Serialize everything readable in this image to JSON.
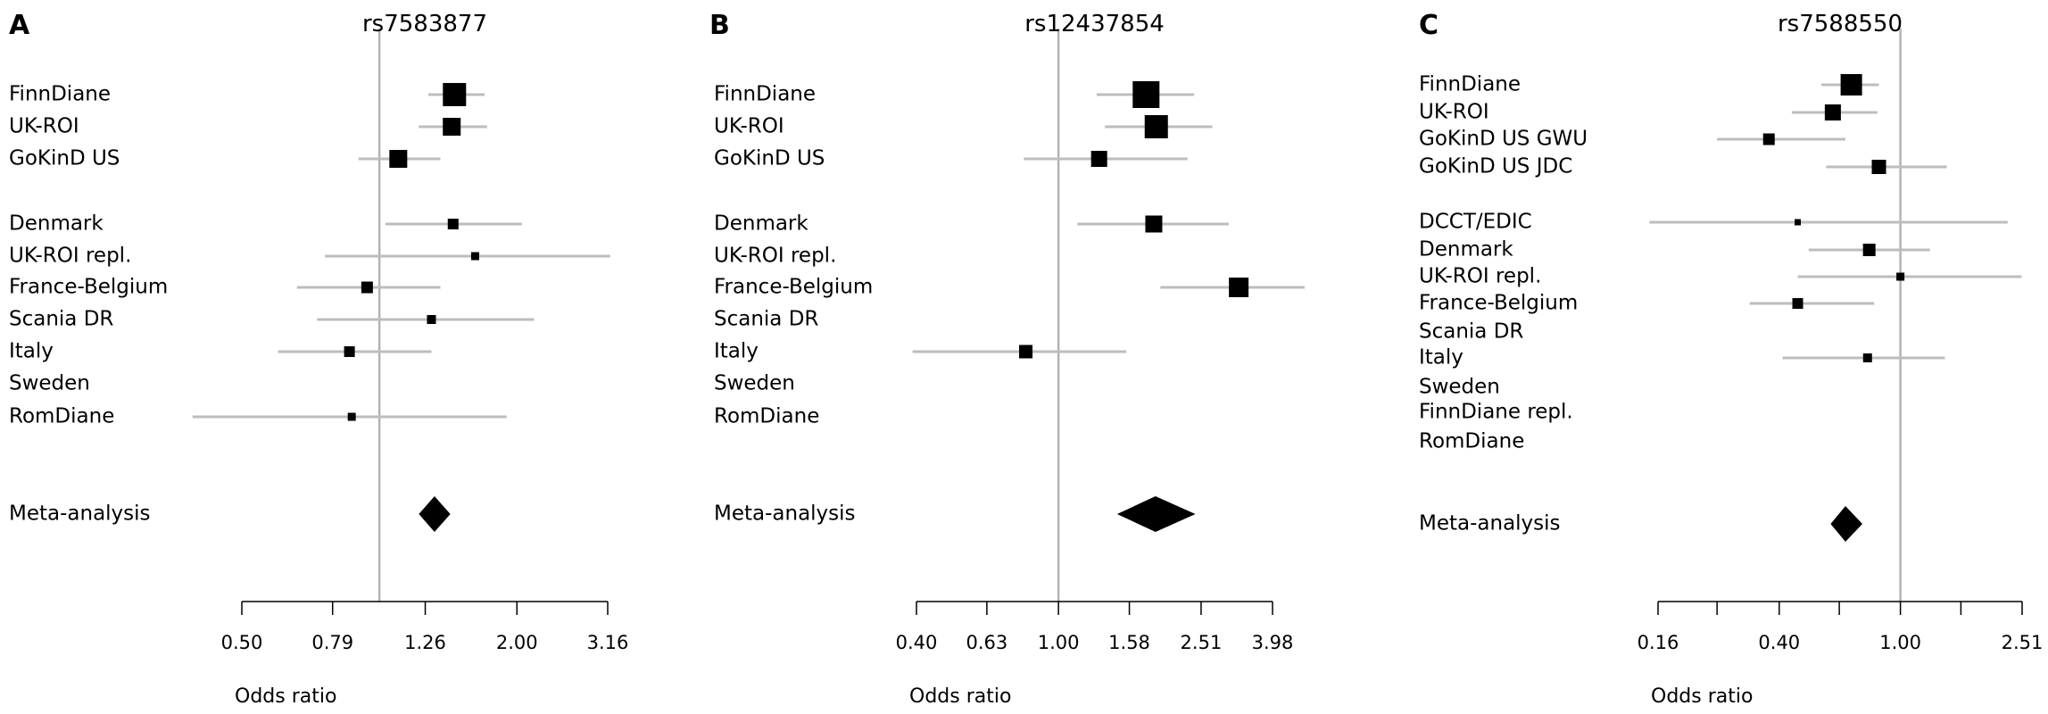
{
  "chart_data": [
    {
      "type": "forest",
      "panel_letter": "A",
      "title": "rs7583877",
      "xlabel": "Odds ratio",
      "log_scale": true,
      "xlim": [
        0.5,
        3.16
      ],
      "ticks": [
        "0.50",
        "0.79",
        "1.26",
        "2.00",
        "3.16"
      ],
      "reference_line": 1.0,
      "rows": [
        {
          "label": "FinnDiane",
          "or": 1.46,
          "lo": 1.28,
          "hi": 1.7
        },
        {
          "label": "UK-ROI",
          "or": 1.44,
          "lo": 1.22,
          "hi": 1.72
        },
        {
          "label": "GoKinD US",
          "or": 1.1,
          "lo": 0.9,
          "hi": 1.36
        },
        {
          "label": "Denmark",
          "or": 1.45,
          "lo": 1.03,
          "hi": 2.05
        },
        {
          "label": "UK-ROI repl.",
          "or": 1.62,
          "lo": 0.76,
          "hi": 3.2
        },
        {
          "label": "France-Belgium",
          "or": 0.94,
          "lo": 0.66,
          "hi": 1.36
        },
        {
          "label": "Scania DR",
          "or": 1.3,
          "lo": 0.73,
          "hi": 2.18
        },
        {
          "label": "Italy",
          "or": 0.86,
          "lo": 0.6,
          "hi": 1.3
        },
        {
          "label": "Sweden",
          "or": null,
          "lo": null,
          "hi": null
        },
        {
          "label": "RomDiane",
          "or": 0.87,
          "lo": 0.39,
          "hi": 1.9
        }
      ],
      "meta": {
        "label": "Meta-analysis",
        "or": 1.32,
        "lo": 1.22,
        "hi": 1.43
      }
    },
    {
      "type": "forest",
      "panel_letter": "B",
      "title": "rs12437854",
      "xlabel": "Odds ratio",
      "log_scale": true,
      "xlim": [
        0.4,
        3.98
      ],
      "ticks": [
        "0.40",
        "0.63",
        "1.00",
        "1.58",
        "2.51",
        "3.98"
      ],
      "reference_line": 1.0,
      "rows": [
        {
          "label": "FinnDiane",
          "or": 1.76,
          "lo": 1.28,
          "hi": 2.4
        },
        {
          "label": "UK-ROI",
          "or": 1.88,
          "lo": 1.35,
          "hi": 2.7
        },
        {
          "label": "GoKinD US",
          "or": 1.3,
          "lo": 0.8,
          "hi": 2.3
        },
        {
          "label": "Denmark",
          "or": 1.85,
          "lo": 1.13,
          "hi": 3.0
        },
        {
          "label": "UK-ROI repl.",
          "or": null,
          "lo": null,
          "hi": null
        },
        {
          "label": "France-Belgium",
          "or": 3.2,
          "lo": 1.93,
          "hi": 4.9
        },
        {
          "label": "Scania DR",
          "or": null,
          "lo": null,
          "hi": null
        },
        {
          "label": "Italy",
          "or": 0.81,
          "lo": 0.39,
          "hi": 1.55
        },
        {
          "label": "Sweden",
          "or": null,
          "lo": null,
          "hi": null
        },
        {
          "label": "RomDiane",
          "or": null,
          "lo": null,
          "hi": null
        }
      ],
      "meta": {
        "label": "Meta-analysis",
        "or": 1.87,
        "lo": 1.46,
        "hi": 2.42
      }
    },
    {
      "type": "forest",
      "panel_letter": "C",
      "title": "rs7588550",
      "xlabel": "Odds ratio",
      "log_scale": true,
      "xlim": [
        0.16,
        2.51
      ],
      "ticks": [
        "0.16",
        "0.40",
        "1.00",
        "2.51"
      ],
      "minor_ticks": [
        0.25,
        0.63,
        1.58
      ],
      "reference_line": 1.0,
      "rows": [
        {
          "label": "FinnDiane",
          "or": 0.69,
          "lo": 0.55,
          "hi": 0.85
        },
        {
          "label": "UK-ROI",
          "or": 0.6,
          "lo": 0.44,
          "hi": 0.84
        },
        {
          "label": "GoKinD US GWU",
          "or": 0.37,
          "lo": 0.25,
          "hi": 0.66
        },
        {
          "label": "GoKinD US JDC",
          "or": 0.85,
          "lo": 0.57,
          "hi": 1.42
        },
        {
          "label": "DCCT/EDIC",
          "or": 0.46,
          "lo": 0.15,
          "hi": 2.25
        },
        {
          "label": "Denmark",
          "or": 0.79,
          "lo": 0.5,
          "hi": 1.25
        },
        {
          "label": "UK-ROI repl.",
          "or": 1.0,
          "lo": 0.46,
          "hi": 2.5
        },
        {
          "label": "France-Belgium",
          "or": 0.46,
          "lo": 0.32,
          "hi": 0.82
        },
        {
          "label": "Scania DR",
          "or": null,
          "lo": null,
          "hi": null
        },
        {
          "label": "Italy",
          "or": 0.78,
          "lo": 0.41,
          "hi": 1.4
        },
        {
          "label": "Sweden",
          "or": null,
          "lo": null,
          "hi": null
        },
        {
          "label": "FinnDiane repl.",
          "or": null,
          "lo": null,
          "hi": null
        },
        {
          "label": "RomDiane",
          "or": null,
          "lo": null,
          "hi": null
        }
      ],
      "meta": {
        "label": "Meta-analysis",
        "or": 0.66,
        "lo": 0.59,
        "hi": 0.75
      }
    }
  ]
}
